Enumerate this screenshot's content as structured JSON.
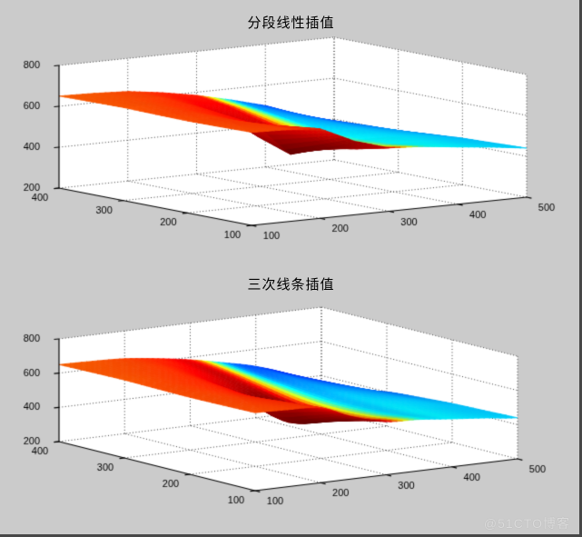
{
  "window": {
    "background": "#cbcbcb",
    "axes_background": "#ffffff",
    "border_color": "#474747",
    "text_color": "#000000",
    "grid_line_style": "dotted"
  },
  "watermark": {
    "text": "@51CTO博客",
    "color": "#dcdcdc"
  },
  "chart_data": [
    {
      "type": "surface",
      "title": "分段线性插值",
      "interpolation": "piecewise-linear",
      "colormap": "jet",
      "grid": true,
      "xticks": [
        100,
        200,
        300,
        400,
        500
      ],
      "yticks": [
        100,
        200,
        300,
        400
      ],
      "zticks": [
        200,
        400,
        600,
        800
      ],
      "xlim": [
        100,
        500
      ],
      "ylim": [
        100,
        400
      ],
      "zlim": [
        200,
        800
      ],
      "x": [
        100,
        150,
        200,
        250,
        300,
        350,
        400,
        450,
        500
      ],
      "y": [
        100,
        150,
        200,
        250,
        300,
        350,
        400
      ],
      "z": [
        [
          655,
          650,
          638,
          560,
          510,
          500,
          480,
          462,
          440
        ],
        [
          652,
          648,
          618,
          495,
          475,
          480,
          472,
          456,
          434
        ],
        [
          650,
          645,
          598,
          435,
          458,
          472,
          468,
          452,
          428
        ],
        [
          652,
          648,
          615,
          490,
          478,
          478,
          470,
          452,
          416
        ],
        [
          655,
          650,
          632,
          560,
          520,
          498,
          478,
          448,
          400
        ],
        [
          653,
          649,
          640,
          600,
          560,
          522,
          488,
          440,
          360
        ],
        [
          650,
          646,
          638,
          615,
          585,
          545,
          500,
          428,
          310
        ]
      ],
      "color_values": [
        [
          0.8,
          0.81,
          0.84,
          0.93,
          0.9,
          0.4,
          0.36,
          0.34,
          0.33
        ],
        [
          0.8,
          0.82,
          0.86,
          0.98,
          0.95,
          0.38,
          0.36,
          0.33,
          0.32
        ],
        [
          0.8,
          0.82,
          0.88,
          1.0,
          0.97,
          0.37,
          0.35,
          0.33,
          0.31
        ],
        [
          0.8,
          0.82,
          0.86,
          0.97,
          0.95,
          0.36,
          0.33,
          0.29,
          0.27
        ],
        [
          0.79,
          0.81,
          0.84,
          0.91,
          0.9,
          0.34,
          0.29,
          0.24,
          0.22
        ],
        [
          0.79,
          0.8,
          0.82,
          0.87,
          0.88,
          0.3,
          0.24,
          0.17,
          0.14
        ],
        [
          0.78,
          0.79,
          0.81,
          0.84,
          0.85,
          0.28,
          0.19,
          0.13,
          0.11
        ]
      ]
    },
    {
      "type": "surface",
      "title": "三次线条插值",
      "interpolation": "cubic-spline",
      "colormap": "jet",
      "grid": true,
      "xticks": [
        100,
        200,
        300,
        400,
        500
      ],
      "yticks": [
        100,
        200,
        300,
        400
      ],
      "zticks": [
        200,
        400,
        600,
        800
      ],
      "xlim": [
        100,
        500
      ],
      "ylim": [
        100,
        400
      ],
      "zlim": [
        200,
        800
      ],
      "x": [
        100,
        150,
        200,
        250,
        300,
        350,
        400,
        450,
        500
      ],
      "y": [
        100,
        150,
        200,
        250,
        300,
        350,
        400
      ],
      "z": [
        [
          655,
          650,
          638,
          560,
          510,
          500,
          480,
          462,
          440
        ],
        [
          652,
          648,
          618,
          495,
          475,
          480,
          472,
          456,
          434
        ],
        [
          650,
          645,
          598,
          435,
          458,
          472,
          468,
          452,
          428
        ],
        [
          652,
          648,
          615,
          490,
          478,
          478,
          470,
          452,
          416
        ],
        [
          655,
          650,
          632,
          560,
          520,
          498,
          478,
          448,
          400
        ],
        [
          653,
          649,
          640,
          600,
          560,
          522,
          488,
          440,
          360
        ],
        [
          650,
          646,
          638,
          615,
          585,
          545,
          500,
          428,
          310
        ]
      ],
      "color_values": [
        [
          0.8,
          0.81,
          0.84,
          0.93,
          0.9,
          0.4,
          0.36,
          0.34,
          0.33
        ],
        [
          0.8,
          0.82,
          0.86,
          0.98,
          0.95,
          0.38,
          0.36,
          0.33,
          0.32
        ],
        [
          0.8,
          0.82,
          0.88,
          1.0,
          0.97,
          0.37,
          0.35,
          0.33,
          0.31
        ],
        [
          0.8,
          0.82,
          0.86,
          0.97,
          0.95,
          0.36,
          0.33,
          0.29,
          0.27
        ],
        [
          0.79,
          0.81,
          0.84,
          0.91,
          0.9,
          0.34,
          0.29,
          0.24,
          0.22
        ],
        [
          0.79,
          0.8,
          0.82,
          0.87,
          0.88,
          0.3,
          0.24,
          0.17,
          0.14
        ],
        [
          0.78,
          0.79,
          0.81,
          0.84,
          0.85,
          0.28,
          0.19,
          0.13,
          0.11
        ]
      ]
    }
  ]
}
